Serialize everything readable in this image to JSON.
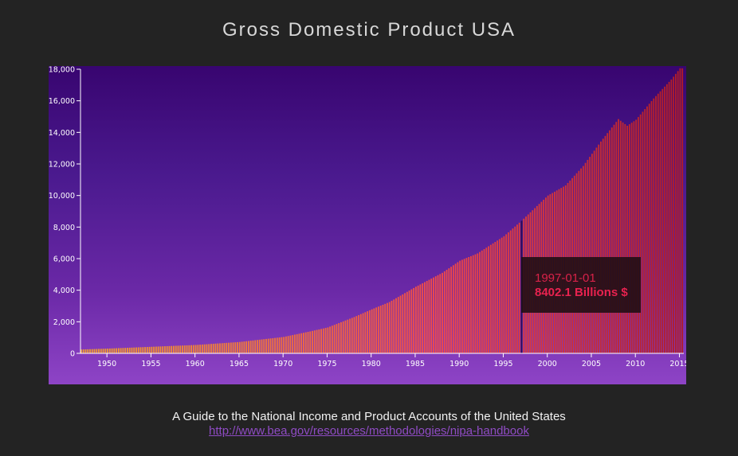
{
  "page": {
    "title": "Gross Domestic Product USA",
    "source_title": "A Guide to the National Income and Product Accounts of the United States",
    "source_link": "http://www.bea.gov/resources/methodologies/nipa-handbook"
  },
  "tooltip": {
    "date": "1997-01-01",
    "value": "8402.1 Billions $"
  },
  "colors": {
    "bar_low": "#f0a030",
    "bar_mid": "#f04a4a",
    "bar_high": "#b01c28",
    "highlight_bar": "#2a0b55",
    "link": "#8f4bc4"
  },
  "chart_data": {
    "type": "bar",
    "title": "Gross Domestic Product USA",
    "xlabel": "",
    "ylabel": "",
    "x_domain": [
      1947.0,
      2015.5
    ],
    "ylim": [
      0,
      18000
    ],
    "y_ticks": [
      0,
      2000,
      4000,
      6000,
      8000,
      10000,
      12000,
      14000,
      16000,
      18000
    ],
    "y_tick_labels": [
      "0",
      "2,000",
      "4,000",
      "6,000",
      "8,000",
      "10,000",
      "12,000",
      "14,000",
      "16,000",
      "18,000"
    ],
    "x_ticks": [
      1950,
      1955,
      1960,
      1965,
      1970,
      1975,
      1980,
      1985,
      1990,
      1995,
      2000,
      2005,
      2010,
      2015
    ],
    "x_tick_labels": [
      "1950",
      "1955",
      "1960",
      "1965",
      "1970",
      "1975",
      "1980",
      "1985",
      "1990",
      "1995",
      "2000",
      "2005",
      "2010",
      "2015"
    ],
    "frequency": "quarterly",
    "start": "1947-01-01",
    "highlight": {
      "date": "1997-01-01",
      "value": 8402.1
    },
    "annual_points": [
      [
        1947,
        243
      ],
      [
        1950,
        300
      ],
      [
        1955,
        415
      ],
      [
        1960,
        530
      ],
      [
        1965,
        720
      ],
      [
        1970,
        1040
      ],
      [
        1973,
        1390
      ],
      [
        1975,
        1640
      ],
      [
        1978,
        2300
      ],
      [
        1980,
        2790
      ],
      [
        1982,
        3250
      ],
      [
        1985,
        4220
      ],
      [
        1988,
        5100
      ],
      [
        1990,
        5870
      ],
      [
        1992,
        6330
      ],
      [
        1995,
        7420
      ],
      [
        1997,
        8400
      ],
      [
        2000,
        10000
      ],
      [
        2002,
        10640
      ],
      [
        2004,
        11870
      ],
      [
        2006,
        13420
      ],
      [
        2008,
        14840
      ],
      [
        2009,
        14420
      ],
      [
        2010,
        14800
      ],
      [
        2012,
        16150
      ],
      [
        2014,
        17350
      ],
      [
        2015,
        18060
      ]
    ]
  }
}
